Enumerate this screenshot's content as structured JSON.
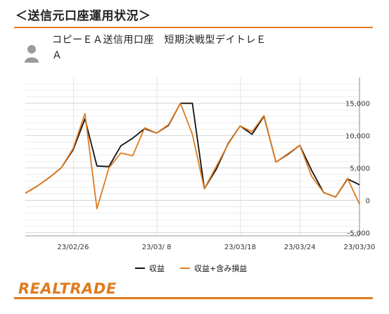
{
  "header": {
    "title": "＜送信元口座運用状況＞"
  },
  "account": {
    "icon": "user-avatar-icon",
    "name": "コピーＥＡ送信用口座　短期決戦型デイトレＥＡ"
  },
  "brand": {
    "logo_text": "REALTRADE",
    "accent": "#e07b1f"
  },
  "chart_data": {
    "type": "line",
    "x_tick_labels": [
      "23/02/26",
      "23/03/ 8",
      "23/03/18",
      "23/03/24",
      "23/03/30"
    ],
    "y_ticks": [
      -5000,
      0,
      5000,
      10000,
      15000
    ],
    "y_tick_labels": [
      "-5,000",
      "0",
      "5,000",
      "10,000",
      "15,000"
    ],
    "ylim": [
      -5500,
      19000
    ],
    "grid": true,
    "legend_position": "bottom",
    "series": [
      {
        "name": "収益",
        "color": "#111111",
        "values": [
          1100,
          2200,
          3500,
          5000,
          7800,
          12600,
          5300,
          5200,
          8400,
          9600,
          11100,
          10400,
          11600,
          15000,
          15000,
          1800,
          4800,
          8800,
          11500,
          10200,
          13000,
          5900,
          7100,
          8500,
          4600,
          1200,
          500,
          3300,
          2400
        ]
      },
      {
        "name": "収益+含み損益",
        "color": "#e07b1f",
        "values": [
          1100,
          2200,
          3500,
          5000,
          8000,
          13400,
          -1300,
          5000,
          7300,
          6900,
          11200,
          10400,
          11700,
          15000,
          10200,
          1800,
          5200,
          8700,
          11500,
          10600,
          13100,
          5900,
          7200,
          8500,
          3700,
          1200,
          500,
          3400,
          -600
        ]
      }
    ]
  }
}
